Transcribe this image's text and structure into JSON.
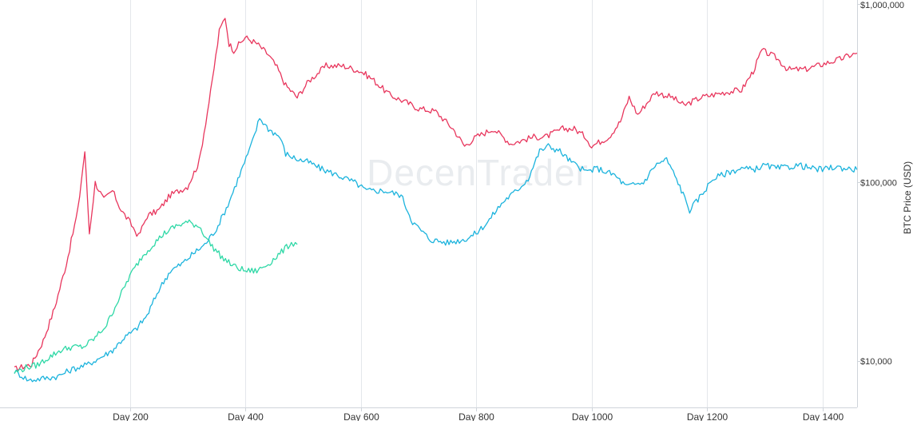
{
  "chart_data": {
    "type": "line",
    "title": "",
    "xlabel": "",
    "ylabel": "BTC Price (USD)",
    "yscale": "log",
    "xlim": [
      0,
      1460
    ],
    "ylim": [
      5500,
      1000000
    ],
    "grid": "vertical",
    "legend": "none",
    "watermark": "DecenTrader",
    "x_ticks": [
      {
        "value": 200,
        "label": "Day 200"
      },
      {
        "value": 400,
        "label": "Day 400"
      },
      {
        "value": 600,
        "label": "Day 600"
      },
      {
        "value": 800,
        "label": "Day 800"
      },
      {
        "value": 1000,
        "label": "Day 1000"
      },
      {
        "value": 1200,
        "label": "Day 1200"
      },
      {
        "value": 1400,
        "label": "Day 1400"
      }
    ],
    "y_ticks": [
      {
        "value": 10000,
        "label": "$10,000"
      },
      {
        "value": 100000,
        "label": "$100,000"
      },
      {
        "value": 1000000,
        "label": "$1,000,000"
      }
    ],
    "series": [
      {
        "color": "#e8365d",
        "points": [
          [
            0,
            9000
          ],
          [
            30,
            9600
          ],
          [
            50,
            13000
          ],
          [
            70,
            20000
          ],
          [
            90,
            35000
          ],
          [
            110,
            70000
          ],
          [
            122,
            150000
          ],
          [
            130,
            52000
          ],
          [
            140,
            100000
          ],
          [
            155,
            80000
          ],
          [
            170,
            90000
          ],
          [
            185,
            70000
          ],
          [
            200,
            60000
          ],
          [
            215,
            50000
          ],
          [
            230,
            65000
          ],
          [
            250,
            70000
          ],
          [
            270,
            85000
          ],
          [
            300,
            95000
          ],
          [
            320,
            130000
          ],
          [
            340,
            320000
          ],
          [
            355,
            700000
          ],
          [
            365,
            850000
          ],
          [
            372,
            600000
          ],
          [
            380,
            550000
          ],
          [
            400,
            650000
          ],
          [
            420,
            600000
          ],
          [
            440,
            520000
          ],
          [
            455,
            440000
          ],
          [
            470,
            350000
          ],
          [
            490,
            300000
          ],
          [
            510,
            370000
          ],
          [
            540,
            450000
          ],
          [
            570,
            450000
          ],
          [
            600,
            420000
          ],
          [
            620,
            380000
          ],
          [
            650,
            310000
          ],
          [
            680,
            280000
          ],
          [
            700,
            260000
          ],
          [
            730,
            250000
          ],
          [
            760,
            200000
          ],
          [
            780,
            160000
          ],
          [
            800,
            180000
          ],
          [
            830,
            200000
          ],
          [
            860,
            165000
          ],
          [
            900,
            180000
          ],
          [
            920,
            180000
          ],
          [
            950,
            200000
          ],
          [
            970,
            200000
          ],
          [
            990,
            180000
          ],
          [
            1000,
            160000
          ],
          [
            1030,
            180000
          ],
          [
            1050,
            220000
          ],
          [
            1065,
            300000
          ],
          [
            1080,
            240000
          ],
          [
            1110,
            320000
          ],
          [
            1140,
            300000
          ],
          [
            1160,
            270000
          ],
          [
            1190,
            300000
          ],
          [
            1230,
            320000
          ],
          [
            1260,
            330000
          ],
          [
            1280,
            420000
          ],
          [
            1295,
            550000
          ],
          [
            1320,
            500000
          ],
          [
            1340,
            430000
          ],
          [
            1370,
            430000
          ],
          [
            1400,
            460000
          ],
          [
            1430,
            490000
          ],
          [
            1450,
            520000
          ],
          [
            1460,
            530000
          ]
        ]
      },
      {
        "color": "#1bb3dd",
        "points": [
          [
            0,
            8800
          ],
          [
            25,
            7800
          ],
          [
            50,
            8000
          ],
          [
            75,
            8200
          ],
          [
            100,
            9000
          ],
          [
            125,
            9500
          ],
          [
            150,
            10500
          ],
          [
            170,
            11500
          ],
          [
            190,
            13500
          ],
          [
            210,
            15000
          ],
          [
            230,
            18000
          ],
          [
            250,
            25000
          ],
          [
            270,
            32000
          ],
          [
            290,
            35000
          ],
          [
            310,
            40000
          ],
          [
            330,
            45000
          ],
          [
            350,
            55000
          ],
          [
            370,
            75000
          ],
          [
            390,
            110000
          ],
          [
            410,
            160000
          ],
          [
            425,
            230000
          ],
          [
            440,
            200000
          ],
          [
            460,
            180000
          ],
          [
            470,
            145000
          ],
          [
            490,
            135000
          ],
          [
            510,
            130000
          ],
          [
            530,
            120000
          ],
          [
            560,
            110000
          ],
          [
            590,
            100000
          ],
          [
            610,
            90000
          ],
          [
            640,
            90000
          ],
          [
            670,
            85000
          ],
          [
            690,
            60000
          ],
          [
            720,
            48000
          ],
          [
            750,
            46000
          ],
          [
            780,
            48000
          ],
          [
            800,
            52000
          ],
          [
            820,
            60000
          ],
          [
            835,
            70000
          ],
          [
            850,
            80000
          ],
          [
            870,
            90000
          ],
          [
            890,
            105000
          ],
          [
            910,
            150000
          ],
          [
            925,
            160000
          ],
          [
            945,
            150000
          ],
          [
            965,
            130000
          ],
          [
            990,
            115000
          ],
          [
            1010,
            120000
          ],
          [
            1040,
            110000
          ],
          [
            1060,
            95000
          ],
          [
            1090,
            100000
          ],
          [
            1110,
            125000
          ],
          [
            1130,
            135000
          ],
          [
            1150,
            100000
          ],
          [
            1170,
            70000
          ],
          [
            1190,
            85000
          ],
          [
            1210,
            105000
          ],
          [
            1240,
            115000
          ],
          [
            1260,
            120000
          ],
          [
            1280,
            118000
          ],
          [
            1300,
            125000
          ],
          [
            1320,
            120000
          ],
          [
            1340,
            122000
          ],
          [
            1360,
            125000
          ],
          [
            1380,
            120000
          ],
          [
            1400,
            118000
          ],
          [
            1420,
            122000
          ],
          [
            1440,
            120000
          ],
          [
            1460,
            118000
          ]
        ]
      },
      {
        "color": "#2ed8a6",
        "points": [
          [
            0,
            8600
          ],
          [
            20,
            9200
          ],
          [
            40,
            9500
          ],
          [
            60,
            10500
          ],
          [
            80,
            11500
          ],
          [
            100,
            12000
          ],
          [
            120,
            12000
          ],
          [
            140,
            13500
          ],
          [
            160,
            16000
          ],
          [
            180,
            22000
          ],
          [
            200,
            30000
          ],
          [
            220,
            38000
          ],
          [
            240,
            45000
          ],
          [
            260,
            52000
          ],
          [
            280,
            57000
          ],
          [
            300,
            60000
          ],
          [
            320,
            57000
          ],
          [
            340,
            45000
          ],
          [
            360,
            38000
          ],
          [
            380,
            34000
          ],
          [
            400,
            32000
          ],
          [
            420,
            32000
          ],
          [
            440,
            35000
          ],
          [
            460,
            40000
          ],
          [
            480,
            46000
          ],
          [
            490,
            45000
          ]
        ]
      }
    ]
  }
}
